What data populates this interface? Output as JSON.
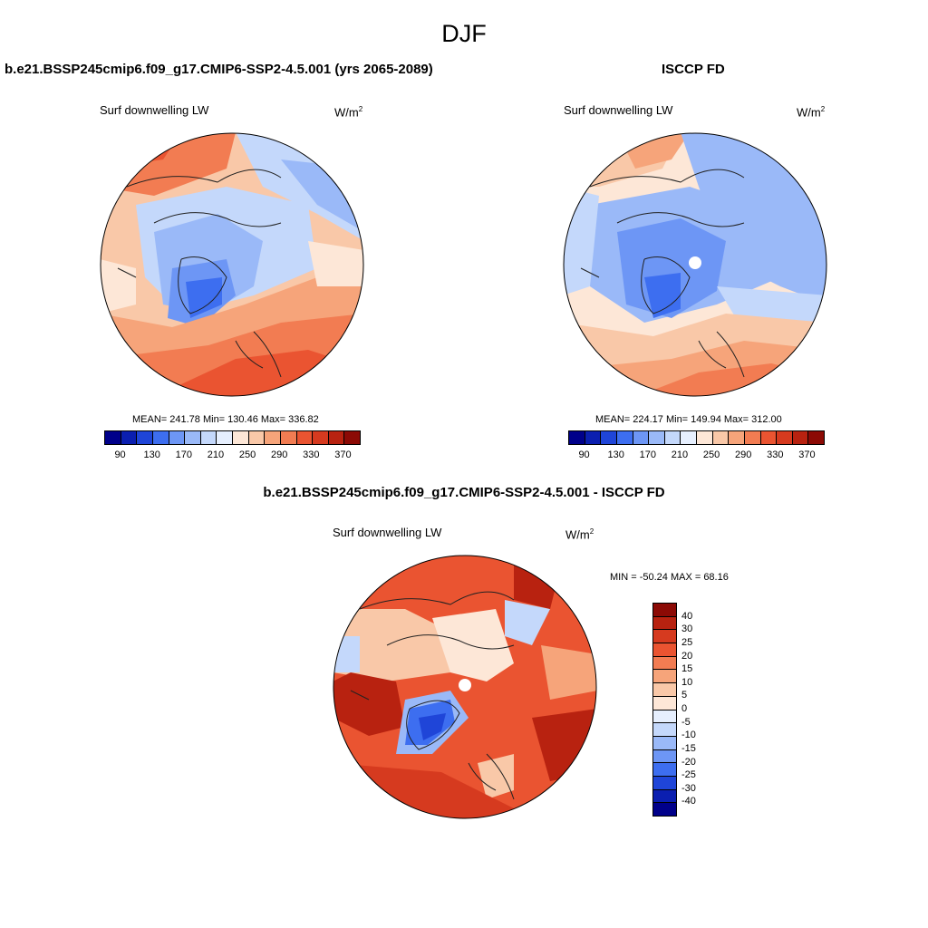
{
  "figure": {
    "season_title": "DJF",
    "units": "W/m",
    "units_exp": "2"
  },
  "panels": {
    "model": {
      "title": "b.e21.BSSP245cmip6.f09_g17.CMIP6-SSP2-4.5.001 (yrs 2065-2089)",
      "variable": "Surf downwelling LW",
      "stats_text": "MEAN= 241.78  Min= 130.46  Max= 336.82"
    },
    "obs": {
      "title": "ISCCP FD",
      "variable": "Surf downwelling LW",
      "stats_text": "MEAN= 224.17  Min= 149.94  Max= 312.00"
    },
    "diff": {
      "title": "b.e21.BSSP245cmip6.f09_g17.CMIP6-SSP2-4.5.001 - ISCCP FD",
      "variable": "Surf downwelling LW",
      "stats_text": "MIN = -50.24 MAX =  68.16"
    }
  },
  "colorbars": {
    "abs_colors": [
      "#00008a",
      "#0b1fb0",
      "#1f45d8",
      "#3d6ef0",
      "#6d96f5",
      "#9ab9f8",
      "#c4d8fb",
      "#e6effe",
      "#fde7d7",
      "#f9c8a8",
      "#f6a47a",
      "#f27c52",
      "#ea5431",
      "#d63a1f",
      "#b82210",
      "#8c0a05"
    ],
    "abs_ticks": [
      "90",
      "130",
      "170",
      "210",
      "250",
      "290",
      "330",
      "370"
    ],
    "diff_colors": [
      "#8c0a05",
      "#b82210",
      "#d63a1f",
      "#ea5431",
      "#f27c52",
      "#f6a47a",
      "#f9c8a8",
      "#fde7d7",
      "#e6effe",
      "#c4d8fb",
      "#9ab9f8",
      "#6d96f5",
      "#3d6ef0",
      "#1f45d8",
      "#0b1fb0",
      "#00008a"
    ],
    "diff_ticks": [
      "40",
      "30",
      "25",
      "20",
      "15",
      "10",
      "5",
      "0",
      "-5",
      "-10",
      "-15",
      "-20",
      "-25",
      "-30",
      "-40"
    ]
  }
}
